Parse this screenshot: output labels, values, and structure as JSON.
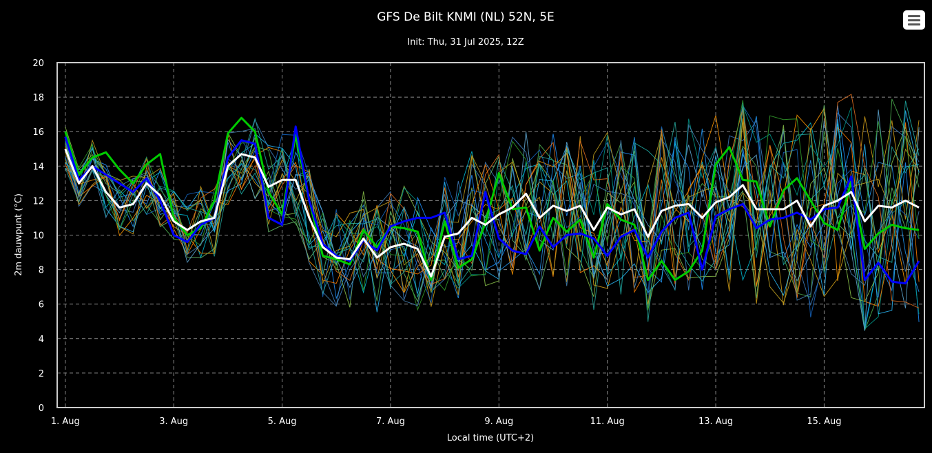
{
  "chart_data": {
    "type": "line",
    "title": "GFS De Bilt KNMI (NL) 52N, 5E",
    "subtitle": "Init: Thu, 31 Jul 2025, 12Z",
    "xlabel": "Local time (UTC+2)",
    "ylabel": "2m dauwpunt (°C)",
    "ylim": [
      0,
      20
    ],
    "xlim_days": [
      0.85,
      16.85
    ],
    "grid": true,
    "x_ticks": [
      {
        "day": 1,
        "label": "1. Aug"
      },
      {
        "day": 3,
        "label": "3. Aug"
      },
      {
        "day": 5,
        "label": "5. Aug"
      },
      {
        "day": 7,
        "label": "7. Aug"
      },
      {
        "day": 9,
        "label": "9. Aug"
      },
      {
        "day": 11,
        "label": "11. Aug"
      },
      {
        "day": 13,
        "label": "13. Aug"
      },
      {
        "day": 15,
        "label": "15. Aug"
      }
    ],
    "y_ticks": [
      0,
      2,
      4,
      6,
      8,
      10,
      12,
      14,
      16,
      18,
      20
    ],
    "x_start_day": 1.0,
    "x_step_days": 0.25,
    "series": [
      {
        "color": "#ffffff",
        "values": [
          15.0,
          13.0,
          14.0,
          12.5,
          11.6,
          11.8,
          13.0,
          12.3,
          10.8,
          10.3,
          10.8,
          11.0,
          14.0,
          14.7,
          14.5,
          12.8,
          13.2,
          13.2,
          11.0,
          9.3,
          8.7,
          8.6,
          9.8,
          8.7,
          9.3,
          9.5,
          9.2,
          7.6,
          9.9,
          10.1,
          11.0,
          10.6,
          11.2,
          11.6,
          12.4,
          11.0,
          11.7,
          11.4,
          11.7,
          10.3,
          11.6,
          11.2,
          11.5,
          9.9,
          11.4,
          11.7,
          11.8,
          11.0,
          11.9,
          12.2,
          12.9,
          11.5,
          11.5,
          11.5,
          12.0,
          10.5,
          11.7,
          12.0,
          12.5,
          10.8,
          11.7,
          11.6,
          12.0,
          11.6
        ]
      },
      {
        "color": "#0000ff",
        "values": [
          15.7,
          13.2,
          14.0,
          13.5,
          13.0,
          12.5,
          13.3,
          12.0,
          10.0,
          9.6,
          10.6,
          11.0,
          14.5,
          15.5,
          15.3,
          11.0,
          10.6,
          16.3,
          12.0,
          9.5,
          8.8,
          8.5,
          9.7,
          9.1,
          10.5,
          10.8,
          11.0,
          11.0,
          11.3,
          8.6,
          8.8,
          12.5,
          9.8,
          9.1,
          8.9,
          10.5,
          9.3,
          10.0,
          10.1,
          9.8,
          8.8,
          9.9,
          10.3,
          8.7,
          10.2,
          11.0,
          11.3,
          8.0,
          11.1,
          11.5,
          11.8,
          10.4,
          10.9,
          11.0,
          11.3,
          10.9,
          11.5,
          11.6,
          13.4,
          7.4,
          8.4,
          7.3,
          7.2,
          8.5
        ]
      },
      {
        "color": "#00cc00",
        "values": [
          16.0,
          13.5,
          14.5,
          14.8,
          13.8,
          13.0,
          14.1,
          14.7,
          11.0,
          10.0,
          10.4,
          12.0,
          15.9,
          16.8,
          16.0,
          12.5,
          11.2,
          15.8,
          12.0,
          8.8,
          8.6,
          8.3,
          10.3,
          9.3,
          10.5,
          10.4,
          10.2,
          7.4,
          10.8,
          8.1,
          8.6,
          10.7,
          13.6,
          11.5,
          11.6,
          9.1,
          11.0,
          10.2,
          10.9,
          8.7,
          11.8,
          10.9,
          10.6,
          7.4,
          8.5,
          7.4,
          7.9,
          9.1,
          14.1,
          15.1,
          13.2,
          13.1,
          10.5,
          12.6,
          13.3,
          12.0,
          10.7,
          10.3,
          13.1,
          9.2,
          10.1,
          10.6,
          10.4,
          10.3
        ]
      }
    ]
  }
}
